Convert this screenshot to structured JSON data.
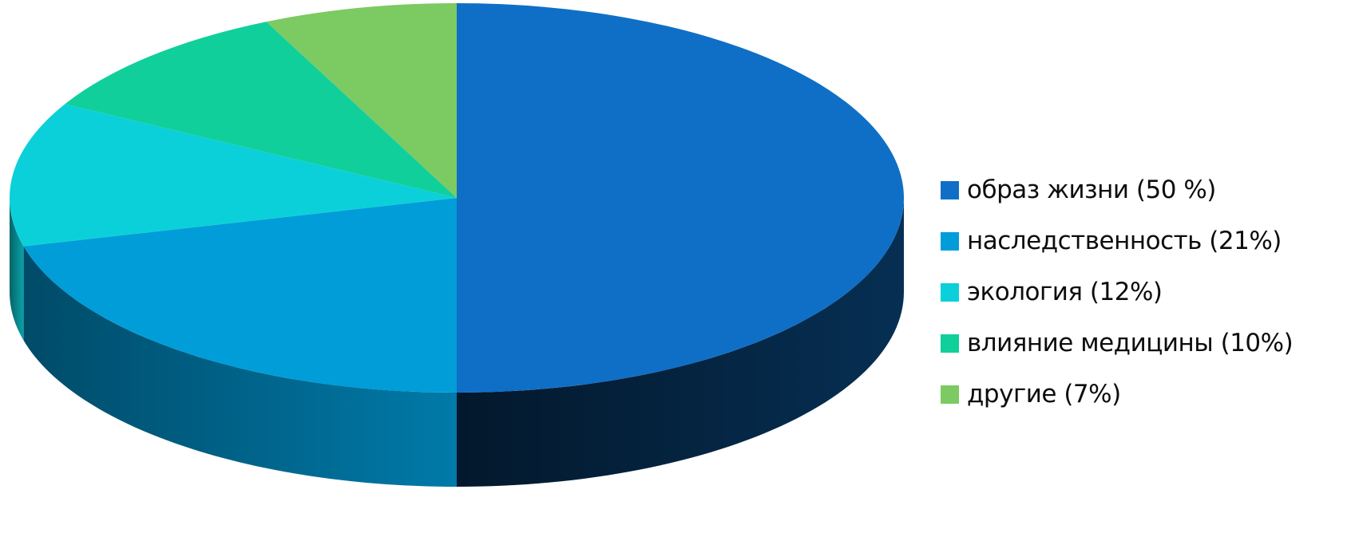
{
  "chart_data": {
    "type": "pie",
    "style": "3d",
    "title": "",
    "legend_position": "right",
    "start": "top",
    "direction": "clockwise",
    "series": [
      {
        "label": "образ жизни (50 %)",
        "value": 50,
        "color": "#0f6fc6"
      },
      {
        "label": "наследственность (21%)",
        "value": 21,
        "color": "#009dd9"
      },
      {
        "label": "экология (12%)",
        "value": 12,
        "color": "#0bd0d9"
      },
      {
        "label": "влияние медицины (10%)",
        "value": 10,
        "color": "#10cf9b"
      },
      {
        "label": "другие (7%)",
        "value": 7,
        "color": "#7cca62"
      }
    ]
  }
}
